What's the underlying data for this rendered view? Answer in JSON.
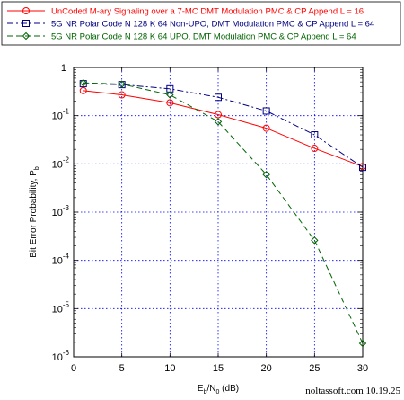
{
  "chart_data": {
    "type": "line",
    "x_scale": "linear",
    "y_scale": "log",
    "xlim": [
      0,
      30
    ],
    "ylim": [
      1e-06,
      1
    ],
    "grid": true,
    "legend_position": "top",
    "x_ticks": [
      0,
      5,
      10,
      15,
      20,
      25,
      30
    ],
    "x_tick_labels": [
      "0",
      "5",
      "10",
      "15",
      "20",
      "25",
      "30"
    ],
    "y_ticks": [
      1e-06,
      1e-05,
      0.0001,
      0.001,
      0.01,
      0.1,
      1
    ],
    "y_tick_labels": [
      {
        "base": "10",
        "exp": "-6"
      },
      {
        "base": "10",
        "exp": "-5"
      },
      {
        "base": "10",
        "exp": "-4"
      },
      {
        "base": "10",
        "exp": "-3"
      },
      {
        "base": "10",
        "exp": "-2"
      },
      {
        "base": "10",
        "exp": "-1"
      },
      {
        "base": "1",
        "exp": ""
      }
    ],
    "xlabel": {
      "main": "E",
      "sub1": "b",
      "mid": "/N",
      "sub2": "0",
      "tail": " (dB)"
    },
    "ylabel": {
      "main": "Bit Error Probability, P",
      "sub": "b"
    },
    "series": [
      {
        "name": "UnCoded M-ary Signaling over a 7-MC DMT Modulation PMC & CP Append  L = 16",
        "color": "#ff0000",
        "dash": "solid",
        "marker": "circle",
        "x": [
          1,
          5,
          10,
          15,
          20,
          25,
          30
        ],
        "y": [
          0.33,
          0.27,
          0.185,
          0.105,
          0.055,
          0.021,
          0.0088
        ]
      },
      {
        "name": "5G NR Polar Code N 128 K 64 Non-UPO, DMT Modulation PMC & CP Append L = 64",
        "color": "#000080",
        "dash": "dashdot",
        "marker": "square",
        "x": [
          1,
          5,
          10,
          15,
          20,
          25,
          30
        ],
        "y": [
          0.46,
          0.44,
          0.36,
          0.24,
          0.125,
          0.04,
          0.0085
        ]
      },
      {
        "name": "5G NR Polar Code N 128 K 64 UPO, DMT Modulation PMC & CP Append L = 64",
        "color": "#006400",
        "dash": "dashed",
        "marker": "diamond",
        "x": [
          1,
          5,
          10,
          15,
          20,
          25,
          30
        ],
        "y": [
          0.48,
          0.45,
          0.27,
          0.075,
          0.006,
          0.00026,
          1.9e-06
        ]
      }
    ],
    "credit": "noltassoft.com 10.19.25"
  }
}
